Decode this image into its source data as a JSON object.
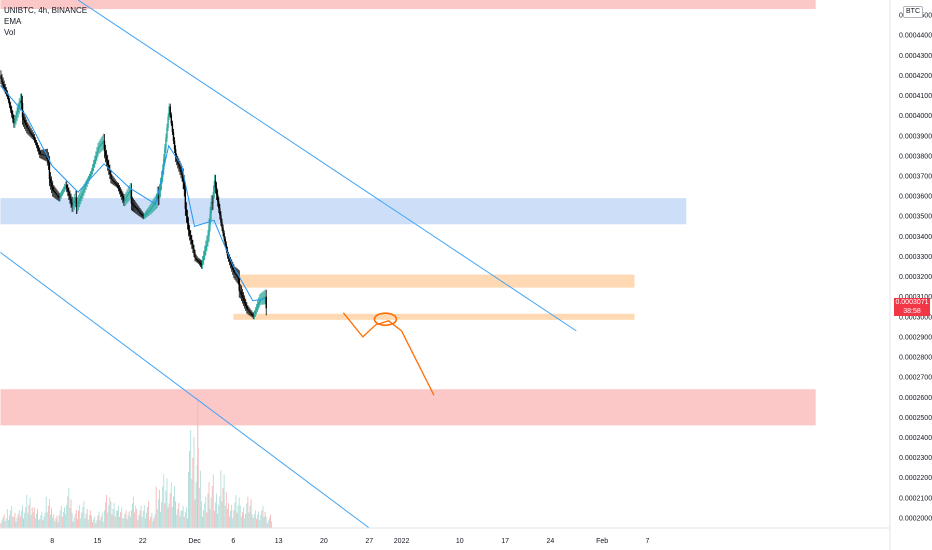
{
  "legend": {
    "symbol": "UNIBTC, 4h, BINANCE",
    "ema_label": "EMA",
    "vol_label": "Vol"
  },
  "price_axis": {
    "unit": "BTC",
    "last_price": "0.0003071",
    "countdown": "38:58"
  },
  "colors": {
    "up_candle": "#26a69a",
    "down_candle": "#000000",
    "ema": "#2196f3",
    "trendline": "#42a5f5",
    "support_zone": "#ffcc99",
    "demand_zone": "#fbb4b4",
    "blue_zone": "#bbd3f5",
    "projection": "#ff6d00",
    "badge": "#f23645"
  },
  "chart_data": {
    "type": "candlestick",
    "ylim": [
      0.000195,
      0.0004575
    ],
    "y_ticks": [
      "0.0004500",
      "0.0004400",
      "0.0004300",
      "0.0004200",
      "0.0004100",
      "0.0004000",
      "0.0003900",
      "0.0003800",
      "0.0003700",
      "0.0003600",
      "0.0003500",
      "0.0003400",
      "0.0003300",
      "0.0003200",
      "0.0003100",
      "0.0003000",
      "0.0002900",
      "0.0002800",
      "0.0002700",
      "0.0002600",
      "0.0002500",
      "0.0002400",
      "0.0002300",
      "0.0002200",
      "0.0002100",
      "0.0002000"
    ],
    "x_ticks": [
      "8",
      "15",
      "22",
      "Dec",
      "6",
      "13",
      "20",
      "27",
      "2022",
      "10",
      "17",
      "24",
      "Feb",
      "7"
    ],
    "x_tick_days": [
      8,
      15,
      22,
      30,
      36,
      43,
      50,
      57,
      62,
      71,
      78,
      85,
      93,
      100
    ],
    "close_path": [
      {
        "d": 0,
        "v": 0.00042
      },
      {
        "d": 1,
        "v": 0.00041
      },
      {
        "d": 2,
        "v": 0.000395
      },
      {
        "d": 3,
        "v": 0.000405
      },
      {
        "d": 4,
        "v": 0.000396
      },
      {
        "d": 5,
        "v": 0.00039
      },
      {
        "d": 6,
        "v": 0.00038
      },
      {
        "d": 7,
        "v": 0.000378
      },
      {
        "d": 8,
        "v": 0.000365
      },
      {
        "d": 9,
        "v": 0.00036
      },
      {
        "d": 10,
        "v": 0.000365
      },
      {
        "d": 11,
        "v": 0.000353
      },
      {
        "d": 12,
        "v": 0.00036
      },
      {
        "d": 13,
        "v": 0.000366
      },
      {
        "d": 14,
        "v": 0.000372
      },
      {
        "d": 15,
        "v": 0.000382
      },
      {
        "d": 16,
        "v": 0.000385
      },
      {
        "d": 17,
        "v": 0.00037
      },
      {
        "d": 18,
        "v": 0.000365
      },
      {
        "d": 19,
        "v": 0.000356
      },
      {
        "d": 20,
        "v": 0.00036
      },
      {
        "d": 21,
        "v": 0.000355
      },
      {
        "d": 22,
        "v": 0.00035
      },
      {
        "d": 23,
        "v": 0.000352
      },
      {
        "d": 24,
        "v": 0.000355
      },
      {
        "d": 25,
        "v": 0.000375
      },
      {
        "d": 26,
        "v": 0.000405
      },
      {
        "d": 27,
        "v": 0.000378
      },
      {
        "d": 28,
        "v": 0.000368
      },
      {
        "d": 29,
        "v": 0.000345
      },
      {
        "d": 30,
        "v": 0.00033
      },
      {
        "d": 31,
        "v": 0.000325
      },
      {
        "d": 32,
        "v": 0.000338
      },
      {
        "d": 33,
        "v": 0.00037
      },
      {
        "d": 34,
        "v": 0.000348
      },
      {
        "d": 35,
        "v": 0.00033
      },
      {
        "d": 36,
        "v": 0.00032
      },
      {
        "d": 37,
        "v": 0.000315
      },
      {
        "d": 38,
        "v": 0.000305
      },
      {
        "d": 39,
        "v": 0.0003
      },
      {
        "d": 40,
        "v": 0.000307
      },
      {
        "d": 41,
        "v": 0.0003071
      }
    ],
    "ema_path": [
      {
        "d": 0,
        "v": 0.000415
      },
      {
        "d": 4,
        "v": 0.0004
      },
      {
        "d": 8,
        "v": 0.000375
      },
      {
        "d": 12,
        "v": 0.000362
      },
      {
        "d": 16,
        "v": 0.000376
      },
      {
        "d": 20,
        "v": 0.000364
      },
      {
        "d": 24,
        "v": 0.000356
      },
      {
        "d": 26,
        "v": 0.000385
      },
      {
        "d": 28,
        "v": 0.000375
      },
      {
        "d": 30,
        "v": 0.000345
      },
      {
        "d": 33,
        "v": 0.000348
      },
      {
        "d": 36,
        "v": 0.000325
      },
      {
        "d": 39,
        "v": 0.000308
      },
      {
        "d": 41,
        "v": 0.000309
      }
    ],
    "zones": [
      {
        "name": "top-red-zone",
        "y_top": 0.0004575,
        "y_bottom": 0.000453,
        "d_from": 0,
        "d_to": 126,
        "color": "#fbb4b4"
      },
      {
        "name": "blue-resistance-zone",
        "y_top": 0.000359,
        "y_bottom": 0.000346,
        "d_from": 0,
        "d_to": 106,
        "color": "#bbd3f5"
      },
      {
        "name": "orange-resistance-zone",
        "y_top": 0.000321,
        "y_bottom": 0.0003145,
        "d_from": 37,
        "d_to": 98,
        "color": "#ffcc99"
      },
      {
        "name": "orange-support-zone",
        "y_top": 0.0003015,
        "y_bottom": 0.0002985,
        "d_from": 36,
        "d_to": 98,
        "color": "#ffcc99"
      },
      {
        "name": "red-demand-zone",
        "y_top": 0.000264,
        "y_bottom": 0.000246,
        "d_from": 0,
        "d_to": 126,
        "color": "#fbb4b4"
      }
    ],
    "trendlines": [
      {
        "name": "upper-trendline",
        "from": {
          "d": 12,
          "v": 0.0004575
        },
        "to": {
          "d": 89,
          "v": 0.000293
        }
      },
      {
        "name": "lower-trendline",
        "from": {
          "d": 0,
          "v": 0.000332
        },
        "to": {
          "d": 57,
          "v": 0.000195
        }
      }
    ],
    "projection": [
      {
        "d": 53,
        "v": 0.000302
      },
      {
        "d": 56,
        "v": 0.00029
      },
      {
        "d": 58,
        "v": 0.000296
      },
      {
        "d": 60,
        "v": 0.000298
      },
      {
        "d": 62,
        "v": 0.000293
      },
      {
        "d": 67,
        "v": 0.000261
      }
    ],
    "projection_circle": {
      "d": 59.5,
      "v": 0.0002988
    },
    "volume": [
      3,
      5,
      4,
      6,
      8,
      5,
      4,
      7,
      3,
      5,
      9,
      4,
      6,
      5,
      3,
      4,
      8,
      6,
      5,
      4,
      7,
      5,
      6,
      4,
      10,
      13,
      11,
      6,
      5,
      22,
      18,
      7,
      12,
      9,
      14,
      6,
      8,
      5,
      7,
      4,
      5,
      3
    ],
    "volume_spike": {
      "d": 30.5,
      "v": 0.00026
    }
  }
}
